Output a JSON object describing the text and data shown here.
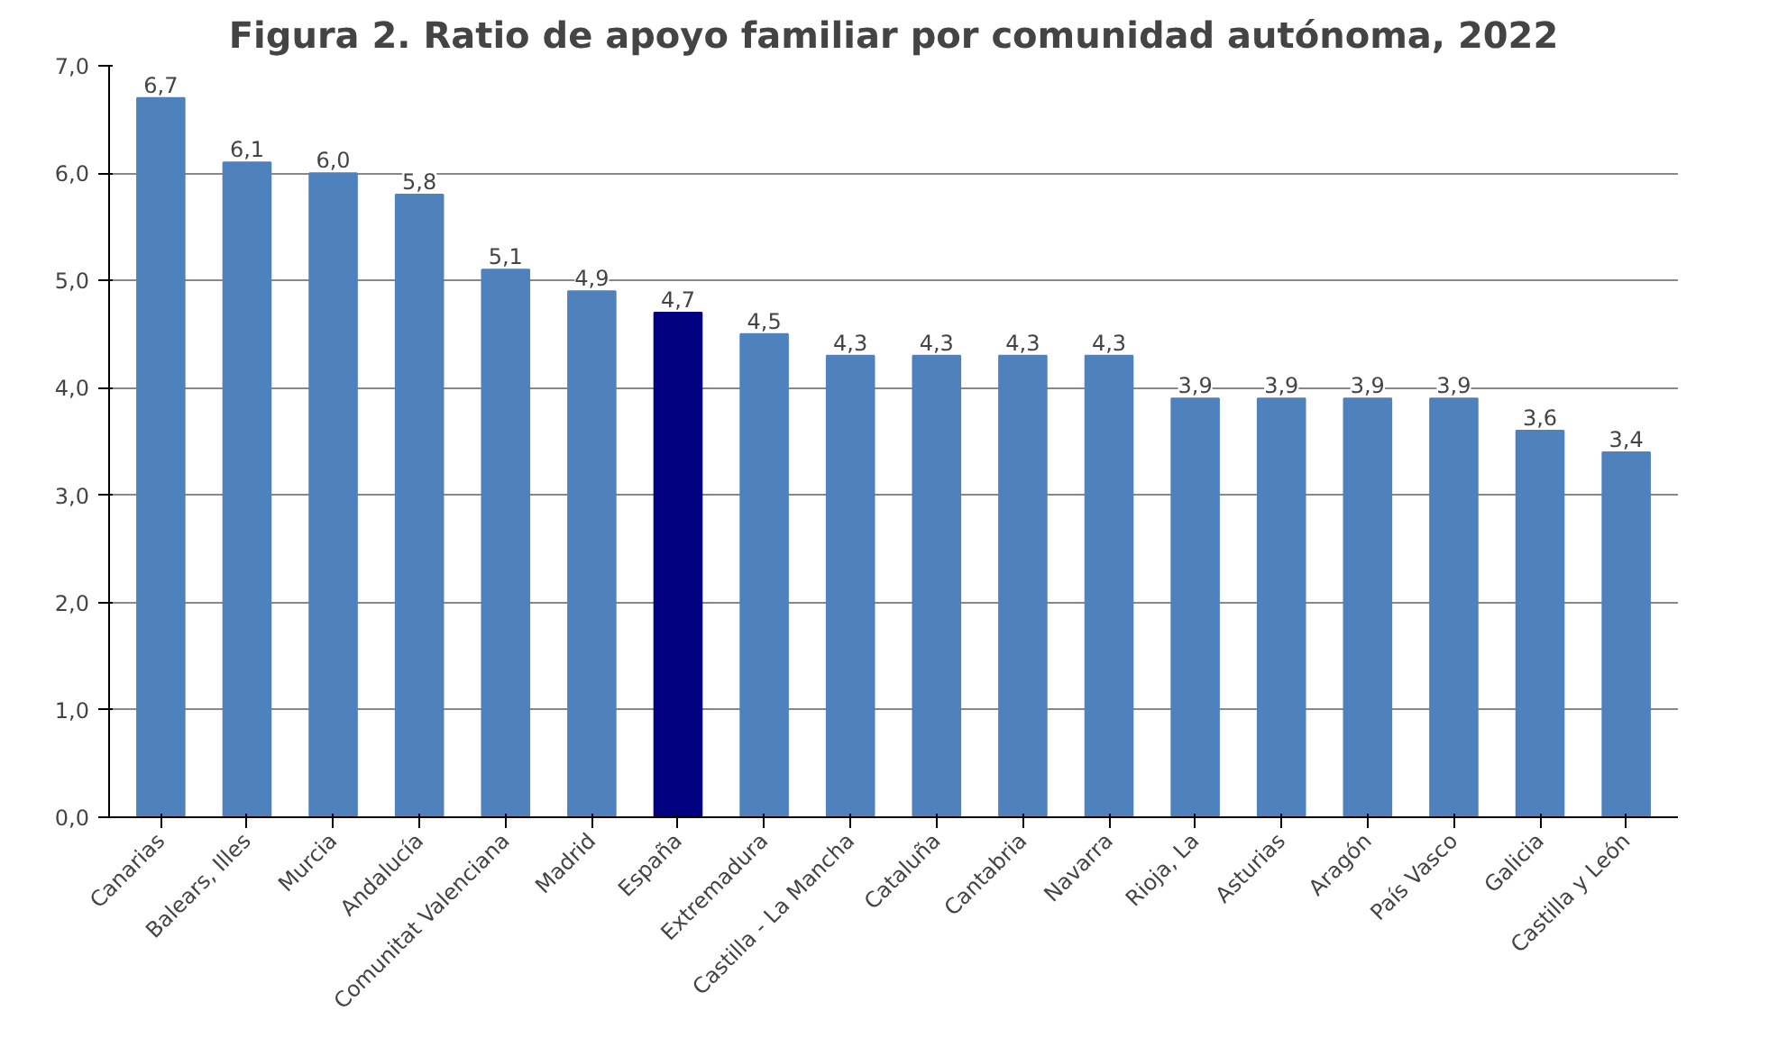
{
  "chart_data": {
    "type": "bar",
    "title": "Figura 2. Ratio de apoyo familiar por comunidad autónoma, 2022",
    "categories": [
      "Canarias",
      "Balears, Illes",
      "Murcia",
      "Andalucía",
      "Comunitat Valenciana",
      "Madrid",
      "España",
      "Extremadura",
      "Castilla - La Mancha",
      "Cataluña",
      "Cantabria",
      "Navarra",
      "Rioja, La",
      "Asturias",
      "Aragón",
      "País Vasco",
      "Galicia",
      "Castilla y León"
    ],
    "values": [
      6.7,
      6.1,
      6.0,
      5.8,
      5.1,
      4.9,
      4.7,
      4.5,
      4.3,
      4.3,
      4.3,
      4.3,
      3.9,
      3.9,
      3.9,
      3.9,
      3.6,
      3.4
    ],
    "value_labels": [
      "6,7",
      "6,1",
      "6,0",
      "5,8",
      "5,1",
      "4,9",
      "4,7",
      "4,5",
      "4,3",
      "4,3",
      "4,3",
      "4,3",
      "3,9",
      "3,9",
      "3,9",
      "3,9",
      "3,6",
      "3,4"
    ],
    "colors": [
      "#4f81bd",
      "#4f81bd",
      "#4f81bd",
      "#4f81bd",
      "#4f81bd",
      "#4f81bd",
      "#000080",
      "#4f81bd",
      "#4f81bd",
      "#4f81bd",
      "#4f81bd",
      "#4f81bd",
      "#4f81bd",
      "#4f81bd",
      "#4f81bd",
      "#4f81bd",
      "#4f81bd",
      "#4f81bd"
    ],
    "ylim": [
      0,
      7
    ],
    "yticks": [
      {
        "value": 0,
        "label": "0,0"
      },
      {
        "value": 1,
        "label": "1,0"
      },
      {
        "value": 2,
        "label": "2,0"
      },
      {
        "value": 3,
        "label": "3,0"
      },
      {
        "value": 4,
        "label": "4,0"
      },
      {
        "value": 5,
        "label": "5,0"
      },
      {
        "value": 6,
        "label": "6,0"
      },
      {
        "value": 7,
        "label": "7,0"
      }
    ],
    "grid": "y"
  }
}
